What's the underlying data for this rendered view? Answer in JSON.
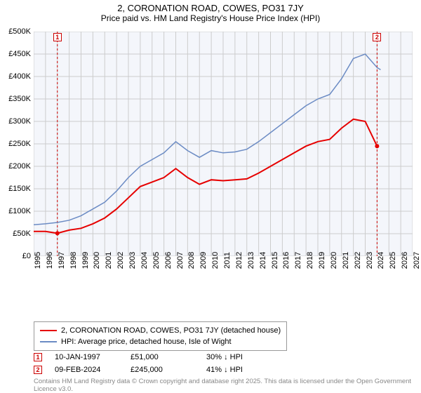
{
  "title": {
    "line1": "2, CORONATION ROAD, COWES, PO31 7JY",
    "line2": "Price paid vs. HM Land Registry's House Price Index (HPI)"
  },
  "chart": {
    "type": "line",
    "background_color": "#f4f6fb",
    "grid_color": "#cccccc",
    "ylim": [
      0,
      500
    ],
    "ytick_step": 50,
    "ytick_prefix": "£",
    "ytick_suffix": "K",
    "ytick_zero": "£0",
    "xlim": [
      1995,
      2027
    ],
    "xtick_step": 1,
    "series": [
      {
        "name": "property",
        "label": "2, CORONATION ROAD, COWES, PO31 7JY (detached house)",
        "color": "#e60000",
        "line_width": 2,
        "data": [
          [
            1995,
            55
          ],
          [
            1996,
            55
          ],
          [
            1997,
            51
          ],
          [
            1998,
            58
          ],
          [
            1999,
            62
          ],
          [
            2000,
            72
          ],
          [
            2001,
            85
          ],
          [
            2002,
            105
          ],
          [
            2003,
            130
          ],
          [
            2004,
            155
          ],
          [
            2005,
            165
          ],
          [
            2006,
            175
          ],
          [
            2007,
            195
          ],
          [
            2008,
            175
          ],
          [
            2009,
            160
          ],
          [
            2010,
            170
          ],
          [
            2011,
            168
          ],
          [
            2012,
            170
          ],
          [
            2013,
            172
          ],
          [
            2014,
            185
          ],
          [
            2015,
            200
          ],
          [
            2016,
            215
          ],
          [
            2017,
            230
          ],
          [
            2018,
            245
          ],
          [
            2019,
            255
          ],
          [
            2020,
            260
          ],
          [
            2021,
            285
          ],
          [
            2022,
            305
          ],
          [
            2023,
            300
          ],
          [
            2024,
            245
          ]
        ]
      },
      {
        "name": "hpi",
        "label": "HPI: Average price, detached house, Isle of Wight",
        "color": "#6b8bc4",
        "line_width": 1.5,
        "data": [
          [
            1995,
            70
          ],
          [
            1996,
            72
          ],
          [
            1997,
            75
          ],
          [
            1998,
            80
          ],
          [
            1999,
            90
          ],
          [
            2000,
            105
          ],
          [
            2001,
            120
          ],
          [
            2002,
            145
          ],
          [
            2003,
            175
          ],
          [
            2004,
            200
          ],
          [
            2005,
            215
          ],
          [
            2006,
            230
          ],
          [
            2007,
            255
          ],
          [
            2008,
            235
          ],
          [
            2009,
            220
          ],
          [
            2010,
            235
          ],
          [
            2011,
            230
          ],
          [
            2012,
            232
          ],
          [
            2013,
            238
          ],
          [
            2014,
            255
          ],
          [
            2015,
            275
          ],
          [
            2016,
            295
          ],
          [
            2017,
            315
          ],
          [
            2018,
            335
          ],
          [
            2019,
            350
          ],
          [
            2020,
            360
          ],
          [
            2021,
            395
          ],
          [
            2022,
            440
          ],
          [
            2023,
            450
          ],
          [
            2024,
            420
          ],
          [
            2024.3,
            415
          ]
        ]
      }
    ],
    "markers": [
      {
        "id": "1",
        "x": 1997,
        "color": "#cc0000"
      },
      {
        "id": "2",
        "x": 2024,
        "color": "#cc0000"
      }
    ]
  },
  "legend": {
    "items": [
      {
        "color": "#e60000",
        "label": "2, CORONATION ROAD, COWES, PO31 7JY (detached house)"
      },
      {
        "color": "#6b8bc4",
        "label": "HPI: Average price, detached house, Isle of Wight"
      }
    ]
  },
  "transactions": [
    {
      "marker": "1",
      "date": "10-JAN-1997",
      "price": "£51,000",
      "delta": "30% ↓ HPI"
    },
    {
      "marker": "2",
      "date": "09-FEB-2024",
      "price": "£245,000",
      "delta": "41% ↓ HPI"
    }
  ],
  "footer": "Contains HM Land Registry data © Crown copyright and database right 2025. This data is licensed under the Open Government Licence v3.0."
}
